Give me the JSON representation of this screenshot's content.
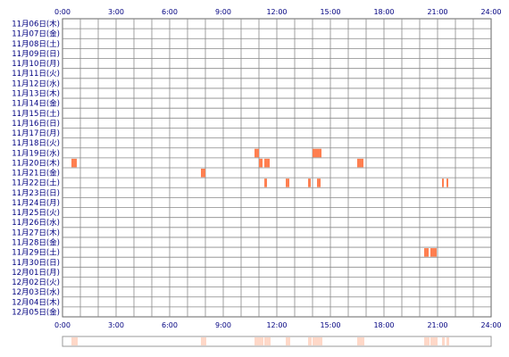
{
  "chart_data": {
    "type": "heatmap",
    "x_ticks": [
      "0:00",
      "3:00",
      "6:00",
      "9:00",
      "12:00",
      "15:00",
      "18:00",
      "21:00",
      "24:00"
    ],
    "xlim": [
      0,
      24
    ],
    "grid": true,
    "rows": [
      "11月06日(木)",
      "11月07日(金)",
      "11月08日(土)",
      "11月09日(日)",
      "11月10日(月)",
      "11月11日(火)",
      "11月12日(水)",
      "11月13日(木)",
      "11月14日(金)",
      "11月15日(土)",
      "11月16日(日)",
      "11月17日(月)",
      "11月18日(火)",
      "11月19日(水)",
      "11月20日(木)",
      "11月21日(金)",
      "11月22日(土)",
      "11月23日(日)",
      "11月24日(月)",
      "11月25日(火)",
      "11月26日(水)",
      "11月27日(木)",
      "11月28日(金)",
      "11月29日(土)",
      "11月30日(日)",
      "12月01日(月)",
      "12月02日(火)",
      "12月03日(水)",
      "12月04日(木)",
      "12月05日(金)"
    ],
    "events": [
      {
        "row": 13,
        "start": 10.75,
        "end": 11.0
      },
      {
        "row": 13,
        "start": 14.0,
        "end": 14.5
      },
      {
        "row": 14,
        "start": 0.5,
        "end": 0.8
      },
      {
        "row": 14,
        "start": 11.0,
        "end": 11.2
      },
      {
        "row": 14,
        "start": 11.3,
        "end": 11.6
      },
      {
        "row": 14,
        "start": 16.5,
        "end": 16.85
      },
      {
        "row": 15,
        "start": 7.75,
        "end": 8.0
      },
      {
        "row": 16,
        "start": 11.3,
        "end": 11.45
      },
      {
        "row": 16,
        "start": 12.5,
        "end": 12.7
      },
      {
        "row": 16,
        "start": 13.75,
        "end": 13.9
      },
      {
        "row": 16,
        "start": 14.25,
        "end": 14.45
      },
      {
        "row": 16,
        "start": 21.25,
        "end": 21.35
      },
      {
        "row": 16,
        "start": 21.5,
        "end": 21.6
      },
      {
        "row": 23,
        "start": 20.25,
        "end": 20.5
      },
      {
        "row": 23,
        "start": 20.6,
        "end": 20.95
      }
    ],
    "colors": {
      "event": "#ff7f50",
      "overview": "#ffd8c8",
      "grid": "#888888",
      "border": "#666666",
      "label": "#000080"
    }
  }
}
